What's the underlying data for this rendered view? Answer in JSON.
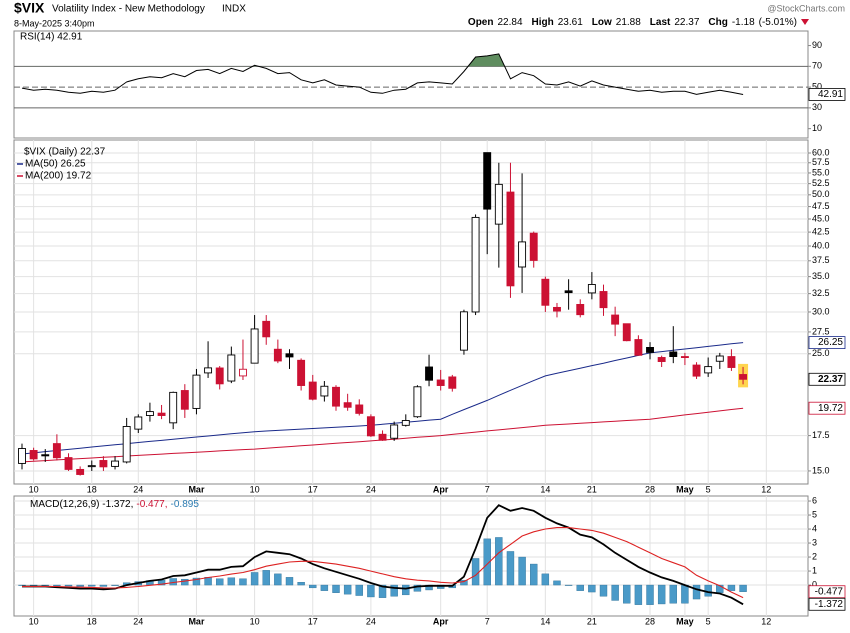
{
  "header": {
    "symbol": "$VIX",
    "name": "Volatility Index - New Methodology",
    "exchange": "INDX",
    "datetime": "8-May-2025 3:40pm",
    "quote": [
      {
        "label": "Open",
        "value": 22.84
      },
      {
        "label": "High",
        "value": 23.61
      },
      {
        "label": "Low",
        "value": 21.88
      },
      {
        "label": "Last",
        "value": 22.37
      },
      {
        "label": "Chg",
        "value": -1.18
      }
    ],
    "change_pct": "(-5.01%)",
    "watermark": "@StockCharts.com"
  },
  "chart_data": [
    {
      "type": "line",
      "title": "RSI(14) 42.91",
      "ylim": [
        1,
        104
      ],
      "yticks": [
        90,
        70,
        50,
        30,
        10
      ],
      "reference_lines": [
        {
          "value": 70,
          "style": "solid",
          "fill_color": "#5f8d5f"
        },
        {
          "value": 50,
          "style": "dashed"
        },
        {
          "value": 30,
          "style": "solid"
        }
      ],
      "series": [
        {
          "color": "#000000",
          "values": [
            49,
            47,
            48,
            47,
            45,
            44,
            46,
            45,
            47,
            55,
            58,
            60,
            59,
            63,
            60,
            66,
            67,
            63,
            68,
            65,
            71,
            68,
            63,
            64,
            57,
            54,
            57,
            52,
            51,
            50,
            45,
            44,
            47,
            48,
            54,
            55,
            54,
            53,
            65,
            79,
            80,
            82,
            58,
            64,
            61,
            53,
            52,
            55,
            51,
            56,
            52,
            50,
            48,
            46,
            47,
            45,
            46,
            46,
            43,
            45,
            47,
            45,
            42.91,
            null,
            null
          ]
        }
      ],
      "value_tags": [
        {
          "value": 42.91,
          "color": "#000000"
        }
      ]
    },
    {
      "type": "candlestick",
      "log_scale": true,
      "grid": true,
      "ylim": [
        14.17,
        63.5
      ],
      "yticks": [
        {
          "value": 15,
          "label": "15.0"
        },
        17.5,
        {
          "value": 25,
          "label": "25.0"
        },
        27.5,
        {
          "value": 30,
          "label": "30.0"
        },
        32.5,
        {
          "value": 35,
          "label": "35.0"
        },
        37.5,
        {
          "value": 40,
          "label": "40.0"
        },
        42.5,
        {
          "value": 45,
          "label": "45.0"
        },
        47.5,
        {
          "value": 50,
          "label": "50.0"
        },
        52.5,
        {
          "value": 55,
          "label": "55.0"
        },
        57.5,
        {
          "value": 60,
          "label": "60.0"
        }
      ],
      "categories": [
        null,
        "10",
        null,
        null,
        null,
        null,
        "18",
        null,
        null,
        null,
        "24",
        null,
        null,
        null,
        null,
        "Mar",
        null,
        null,
        null,
        null,
        "10",
        null,
        null,
        null,
        null,
        "17",
        null,
        null,
        null,
        null,
        "24",
        null,
        null,
        null,
        null,
        null,
        "Apr",
        null,
        null,
        null,
        "7",
        null,
        null,
        null,
        null,
        "14",
        null,
        null,
        null,
        "21",
        null,
        null,
        null,
        null,
        "28",
        null,
        null,
        "May",
        null,
        "5",
        null,
        null,
        null,
        null,
        "12"
      ],
      "candles": {
        "name": "$VIX (Daily) 22.37",
        "up_color": "#000000",
        "down_color": "#cc1133",
        "open": [
          15.5,
          16.4,
          16.1,
          16.9,
          15.9,
          15.1,
          15.3,
          15.7,
          15.3,
          15.6,
          18.0,
          19.1,
          19.3,
          18.5,
          21.3,
          19.7,
          23.0,
          23.5,
          22.2,
          22.7,
          24.0,
          28.8,
          25.5,
          25.0,
          24.3,
          22.1,
          20.8,
          21.6,
          20.2,
          20.0,
          19.0,
          17.6,
          17.3,
          18.3,
          19.0,
          23.6,
          22.3,
          22.6,
          25.4,
          30.0,
          60.1,
          44.0,
          50.6,
          36.5,
          42.3,
          34.6,
          30.6,
          32.9,
          31.0,
          32.6,
          32.8,
          29.6,
          28.5,
          26.6,
          25.7,
          24.6,
          25.2,
          24.7,
          23.8,
          23.0,
          24.2,
          24.7,
          22.84,
          null,
          null
        ],
        "high": [
          16.9,
          16.6,
          16.5,
          17.6,
          16.2,
          15.3,
          15.7,
          16.0,
          16.0,
          18.9,
          19.2,
          20.2,
          20.0,
          21.2,
          21.9,
          23.4,
          26.4,
          23.7,
          25.8,
          26.6,
          29.6,
          29.6,
          26.6,
          25.5,
          24.5,
          22.8,
          22.2,
          21.8,
          21.0,
          20.5,
          19.2,
          17.9,
          18.6,
          19.2,
          21.8,
          24.9,
          23.3,
          22.8,
          30.3,
          45.9,
          60.1,
          57.5,
          57.5,
          54.9,
          42.6,
          35.0,
          31.2,
          34.6,
          31.7,
          35.7,
          33.8,
          30.7,
          28.5,
          27.1,
          26.3,
          24.8,
          28.2,
          25.1,
          24.1,
          24.6,
          25.1,
          25.5,
          23.61,
          null,
          null
        ],
        "low": [
          15.1,
          15.7,
          15.6,
          15.7,
          15.0,
          14.7,
          15.0,
          15.0,
          15.1,
          15.5,
          17.7,
          18.6,
          18.8,
          18.0,
          18.9,
          19.2,
          22.5,
          21.4,
          22.0,
          22.3,
          24.0,
          26.0,
          24.0,
          23.4,
          21.3,
          20.4,
          20.3,
          19.5,
          19.5,
          19.1,
          17.4,
          17.1,
          17.1,
          18.2,
          18.9,
          21.7,
          21.3,
          21.2,
          24.9,
          29.6,
          38.6,
          36.4,
          31.9,
          32.6,
          36.4,
          30.0,
          29.3,
          30.3,
          29.3,
          31.7,
          29.5,
          27.0,
          26.4,
          24.8,
          24.4,
          23.6,
          24.0,
          23.8,
          22.4,
          22.6,
          23.4,
          23.2,
          21.88,
          null,
          null
        ],
        "close": [
          16.54,
          15.81,
          16.02,
          15.89,
          15.1,
          14.77,
          15.35,
          15.27,
          15.66,
          18.21,
          18.98,
          19.43,
          19.1,
          21.13,
          19.63,
          22.78,
          23.51,
          21.93,
          24.87,
          23.37,
          27.86,
          26.92,
          24.23,
          24.66,
          21.77,
          20.51,
          21.7,
          19.9,
          19.8,
          19.28,
          17.48,
          17.15,
          18.33,
          18.69,
          21.65,
          22.28,
          21.77,
          21.51,
          30.02,
          45.31,
          46.98,
          52.33,
          33.62,
          40.72,
          37.56,
          30.89,
          30.12,
          32.64,
          29.65,
          33.82,
          30.57,
          28.45,
          26.47,
          24.84,
          25.15,
          24.17,
          24.7,
          24.6,
          22.68,
          23.64,
          24.76,
          23.55,
          22.37,
          null,
          null
        ]
      },
      "series": [
        {
          "name": "MA(50) 26.25",
          "color": "#1a2a8a",
          "values": [
            16.15,
            16.23,
            16.32,
            16.4,
            16.48,
            16.56,
            16.65,
            16.73,
            16.81,
            16.89,
            16.98,
            17.06,
            17.14,
            17.22,
            17.31,
            17.39,
            17.47,
            17.55,
            17.64,
            17.72,
            17.8,
            17.85,
            17.9,
            17.95,
            18.0,
            18.05,
            18.1,
            18.15,
            18.2,
            18.25,
            18.3,
            18.38,
            18.47,
            18.55,
            18.63,
            18.72,
            18.8,
            19.2,
            19.6,
            20.0,
            20.4,
            20.86,
            21.32,
            21.78,
            22.24,
            22.7,
            22.96,
            23.22,
            23.48,
            23.74,
            24.0,
            24.28,
            24.55,
            24.83,
            25.1,
            25.24,
            25.39,
            25.53,
            25.67,
            25.82,
            25.96,
            26.11,
            26.25,
            null,
            null
          ]
        },
        {
          "name": "MA(200) 19.72",
          "color": "#cc1133",
          "values": [
            15.6,
            15.65,
            15.69,
            15.74,
            15.78,
            15.83,
            15.87,
            15.92,
            15.96,
            16.01,
            16.05,
            16.1,
            16.14,
            16.19,
            16.23,
            16.28,
            16.32,
            16.37,
            16.41,
            16.46,
            16.5,
            16.56,
            16.62,
            16.68,
            16.74,
            16.8,
            16.86,
            16.92,
            16.98,
            17.04,
            17.1,
            17.17,
            17.23,
            17.3,
            17.37,
            17.43,
            17.5,
            17.59,
            17.68,
            17.77,
            17.86,
            17.94,
            18.03,
            18.12,
            18.21,
            18.3,
            18.36,
            18.41,
            18.47,
            18.52,
            18.58,
            18.63,
            18.69,
            18.74,
            18.8,
            18.92,
            19.03,
            19.15,
            19.26,
            19.38,
            19.49,
            19.61,
            19.72,
            null,
            null
          ]
        }
      ],
      "value_tags": [
        {
          "value": 26.25,
          "color": "#1a2a8a"
        },
        {
          "value": 22.37,
          "color": "#000000"
        },
        {
          "value": 19.72,
          "color": "#cc1133"
        }
      ]
    },
    {
      "type": "macd",
      "ylim": [
        -2.21,
        6.36
      ],
      "yticks": [
        6,
        5,
        4,
        3,
        2,
        1,
        0
      ],
      "grid": true,
      "legend": [
        {
          "text": "MACD(12,26,9) -1.372,",
          "color": "#000000"
        },
        {
          "text": "-0.477,",
          "color": "#cc1133"
        },
        {
          "text": "-0.895",
          "color": "#2a7ab0"
        }
      ],
      "categories": [
        null,
        "10",
        null,
        null,
        null,
        null,
        "18",
        null,
        null,
        null,
        "24",
        null,
        null,
        null,
        null,
        "Mar",
        null,
        null,
        null,
        null,
        "10",
        null,
        null,
        null,
        null,
        "17",
        null,
        null,
        null,
        null,
        "24",
        null,
        null,
        null,
        null,
        null,
        "Apr",
        null,
        null,
        null,
        "7",
        null,
        null,
        null,
        null,
        "14",
        null,
        null,
        null,
        "21",
        null,
        null,
        null,
        null,
        "28",
        null,
        null,
        "May",
        null,
        "5",
        null,
        null,
        null,
        null,
        "12"
      ],
      "histogram": {
        "color": "#4a9ac8",
        "values": [
          0,
          0,
          0,
          -0.05,
          -0.07,
          -0.1,
          -0.08,
          -0.1,
          -0.04,
          0.17,
          0.25,
          0.32,
          0.34,
          0.47,
          0.42,
          0.5,
          0.56,
          0.45,
          0.52,
          0.45,
          0.9,
          1.05,
          0.8,
          0.55,
          0.2,
          -0.2,
          -0.4,
          -0.55,
          -0.65,
          -0.75,
          -0.85,
          -0.9,
          -0.8,
          -0.7,
          -0.45,
          -0.35,
          -0.25,
          -0.2,
          0.35,
          1.9,
          3.3,
          3.4,
          2.4,
          2.0,
          1.5,
          0.8,
          0.3,
          0.0,
          -0.4,
          -0.5,
          -0.8,
          -1.1,
          -1.3,
          -1.4,
          -1.4,
          -1.35,
          -1.3,
          -1.3,
          -1.0,
          -0.8,
          -0.55,
          -0.4,
          -0.477,
          null,
          null
        ]
      },
      "series": [
        {
          "color": "#000000",
          "width": 1.8,
          "values": [
            -0.1,
            -0.1,
            -0.1,
            -0.15,
            -0.2,
            -0.25,
            -0.25,
            -0.3,
            -0.25,
            0.0,
            0.15,
            0.3,
            0.4,
            0.65,
            0.7,
            0.9,
            1.1,
            1.1,
            1.3,
            1.35,
            2.0,
            2.4,
            2.3,
            2.2,
            1.9,
            1.5,
            1.2,
            0.95,
            0.7,
            0.45,
            0.15,
            -0.1,
            -0.2,
            -0.25,
            -0.1,
            -0.05,
            -0.05,
            -0.05,
            0.6,
            2.6,
            4.8,
            5.7,
            5.3,
            5.5,
            5.3,
            4.8,
            4.4,
            4.1,
            3.6,
            3.4,
            2.9,
            2.3,
            1.8,
            1.3,
            0.9,
            0.55,
            0.3,
            0.0,
            -0.3,
            -0.5,
            -0.6,
            -0.9,
            -1.372,
            null,
            null
          ]
        },
        {
          "color": "#dd2222",
          "width": 1.1,
          "values": [
            -0.1,
            -0.1,
            -0.1,
            -0.1,
            -0.13,
            -0.15,
            -0.17,
            -0.2,
            -0.21,
            -0.17,
            -0.1,
            -0.02,
            0.06,
            0.18,
            0.28,
            0.4,
            0.54,
            0.65,
            0.78,
            0.9,
            1.1,
            1.35,
            1.5,
            1.65,
            1.7,
            1.7,
            1.6,
            1.5,
            1.35,
            1.2,
            1.0,
            0.8,
            0.6,
            0.45,
            0.35,
            0.3,
            0.2,
            0.15,
            0.25,
            0.7,
            1.5,
            2.3,
            2.9,
            3.5,
            3.8,
            4.0,
            4.1,
            4.1,
            4.0,
            3.9,
            3.7,
            3.4,
            3.1,
            2.7,
            2.3,
            1.9,
            1.6,
            1.3,
            0.7,
            0.3,
            -0.05,
            -0.5,
            -0.895,
            null,
            null
          ]
        }
      ],
      "value_tags": [
        {
          "value": -0.477,
          "color": "#cc1133"
        },
        {
          "value": -1.372,
          "color": "#000000"
        }
      ]
    }
  ]
}
